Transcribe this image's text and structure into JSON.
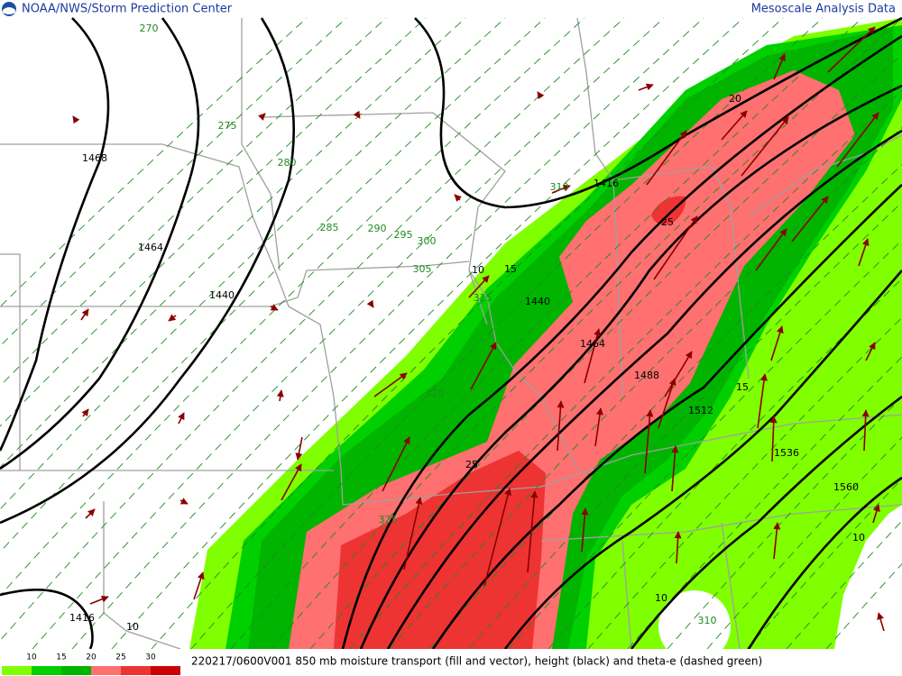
{
  "header": {
    "left": "NOAA/NWS/Storm Prediction Center",
    "right": "Mesoscale Analysis Data"
  },
  "footer": {
    "caption": "220217/0600V001 850 mb moisture transport (fill and vector), height (black) and theta-e (dashed green)"
  },
  "legend": {
    "labels": [
      10,
      15,
      20,
      25,
      30
    ],
    "colors": [
      "#80ff00",
      "#00d000",
      "#00b400",
      "#ff7070",
      "#ee3333",
      "#cc0000"
    ]
  },
  "map": {
    "height_labels": [
      1468,
      1464,
      1440,
      1416,
      1440,
      1464,
      1488,
      1512,
      1536,
      1560,
      1416
    ],
    "theta_e_labels": [
      270,
      275,
      280,
      285,
      290,
      295,
      300,
      305,
      310,
      315,
      320,
      325,
      310
    ],
    "moisture_labels": [
      10,
      15,
      20,
      25,
      15,
      25,
      10,
      10,
      10
    ]
  }
}
